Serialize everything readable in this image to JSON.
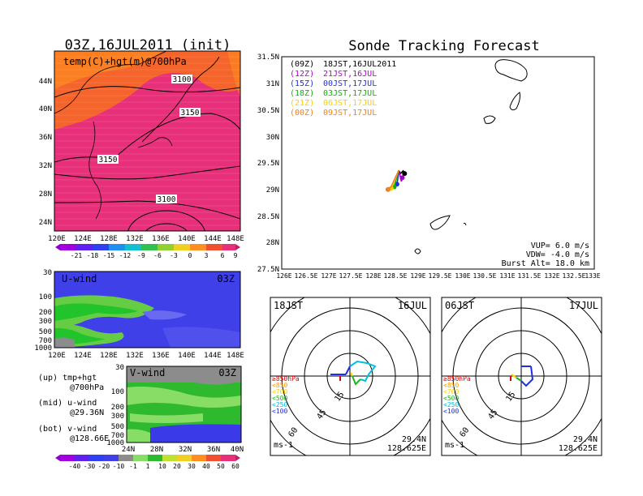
{
  "colors": {
    "temp_bg": "#e8307a",
    "temp_warm": "#f4642b",
    "temp_mid": "#ff8a1e",
    "u_bg": "#4040e8",
    "u_light": "#66cc44",
    "u_green": "#22c42c",
    "v_bg": "#2fb92f",
    "v_light": "#88dd66",
    "v_grey": "#8c8c8c",
    "v_blue": "#3a3ae8",
    "frame": "#000000"
  },
  "main_map": {
    "title": "03Z,16JUL2011 (init)",
    "label": "temp(C)+hgt(m)@700hPa",
    "lat_ticks": [
      "44N",
      "40N",
      "36N",
      "32N",
      "28N",
      "24N"
    ],
    "lon_ticks": [
      "120E",
      "124E",
      "128E",
      "132E",
      "136E",
      "140E",
      "144E",
      "148E"
    ],
    "contour_labels": [
      "3100",
      "3150",
      "3150",
      "3100"
    ],
    "colorbar_ticks": [
      "-21",
      "-18",
      "-15",
      "-12",
      "-9",
      "-6",
      "-3",
      "0",
      "3",
      "6",
      "9"
    ]
  },
  "u_panel": {
    "label": "U-wind",
    "time": "03Z",
    "pres_ticks": [
      "30",
      "100",
      "200",
      "300",
      "500",
      "700",
      "1000"
    ],
    "lon_ticks": [
      "120E",
      "124E",
      "128E",
      "132E",
      "136E",
      "140E",
      "144E",
      "148E"
    ]
  },
  "v_panel": {
    "label": "V-wind",
    "time": "03Z",
    "pres_ticks": [
      "30",
      "100",
      "200",
      "300",
      "500",
      "700",
      "1000"
    ],
    "lat_ticks": [
      "24N",
      "28N",
      "32N",
      "36N",
      "40N"
    ]
  },
  "wind_colorbar_ticks": [
    "-40",
    "-30",
    "-20",
    "-10",
    "-1",
    "1",
    "10",
    "20",
    "30",
    "40",
    "50",
    "60"
  ],
  "captions": [
    {
      "line1": "(up) tmp+hgt",
      "line2": "@700hPa"
    },
    {
      "line1": "(mid) u-wind",
      "line2": "@29.36N"
    },
    {
      "line1": "(bot) v-wind",
      "line2": "@128.66E"
    }
  ],
  "track_map": {
    "title": "Sonde Tracking Forecast",
    "lat_ticks": [
      "31.5N",
      "31N",
      "30.5N",
      "30N",
      "29.5N",
      "29N",
      "28.5N",
      "28N",
      "27.5N"
    ],
    "lon_ticks": [
      "126E",
      "126.5E",
      "127E",
      "127.5E",
      "128E",
      "128.5E",
      "129E",
      "129.5E",
      "130E",
      "130.5E",
      "131E",
      "131.5E",
      "132E",
      "132.5E",
      "133E"
    ],
    "legend": [
      {
        "utc": "(09Z)",
        "jst": "18JST,16JUL2011",
        "color": "#000000"
      },
      {
        "utc": "(12Z)",
        "jst": "21JST,16JUL",
        "color": "#b000d0"
      },
      {
        "utc": "(15Z)",
        "jst": "00JST,17JUL",
        "color": "#2030e0"
      },
      {
        "utc": "(18Z)",
        "jst": "03JST,17JUL",
        "color": "#10b010"
      },
      {
        "utc": "(21Z)",
        "jst": "06JST,17JUL",
        "color": "#ffd000"
      },
      {
        "utc": "(00Z)",
        "jst": "09JST,17JUL",
        "color": "#f08020"
      }
    ],
    "params": [
      "VUP= 6.0 m/s",
      "VDW= -4.0 m/s",
      "Burst Alt= 18.0 km"
    ]
  },
  "hodographs": [
    {
      "left_label": "18JST",
      "right_label": "16JUL",
      "lat": "29.4N",
      "lon": "128.625E",
      "unit": "ms-1"
    },
    {
      "left_label": "06JST",
      "right_label": "17JUL",
      "lat": "29.4N",
      "lon": "128.625E",
      "unit": "ms-1"
    }
  ],
  "ring_labels": [
    "15",
    "45",
    "60"
  ],
  "pressure_legend": [
    {
      "label": "≥850hPa",
      "color": "#e00000"
    },
    {
      "label": "<850",
      "color": "#ff9900"
    },
    {
      "label": "<700",
      "color": "#ffd000"
    },
    {
      "label": "<500",
      "color": "#20b020"
    },
    {
      "label": "<250",
      "color": "#00c0e0"
    },
    {
      "label": "<100",
      "color": "#2030e0"
    }
  ],
  "chart_data": {
    "type": "scatter",
    "title": "Sonde Tracking Forecast",
    "xlabel": "",
    "ylabel": "",
    "xlim": [
      126,
      133
    ],
    "ylim": [
      27.5,
      31.5
    ],
    "series": [
      {
        "name": "(09Z) 18JST,16JUL2011",
        "x": [
          128.62,
          128.66,
          128.72,
          128.75
        ],
        "y": [
          29.36,
          29.3,
          29.35,
          29.3
        ]
      },
      {
        "name": "(12Z) 21JST,16JUL",
        "x": [
          128.62,
          128.68,
          128.7
        ],
        "y": [
          29.36,
          29.15,
          29.22
        ]
      },
      {
        "name": "(15Z) 00JST,17JUL",
        "x": [
          128.62,
          128.6,
          128.58
        ],
        "y": [
          29.36,
          29.2,
          29.1
        ]
      },
      {
        "name": "(18Z) 03JST,17JUL",
        "x": [
          128.62,
          128.55,
          128.52
        ],
        "y": [
          29.36,
          29.15,
          29.05
        ]
      },
      {
        "name": "(21Z) 06JST,17JUL",
        "x": [
          128.62,
          128.5,
          128.45
        ],
        "y": [
          29.36,
          29.1,
          29.02
        ]
      },
      {
        "name": "(00Z) 09JST,17JUL",
        "x": [
          128.62,
          128.45,
          128.38
        ],
        "y": [
          29.36,
          29.05,
          29.0
        ]
      }
    ]
  }
}
